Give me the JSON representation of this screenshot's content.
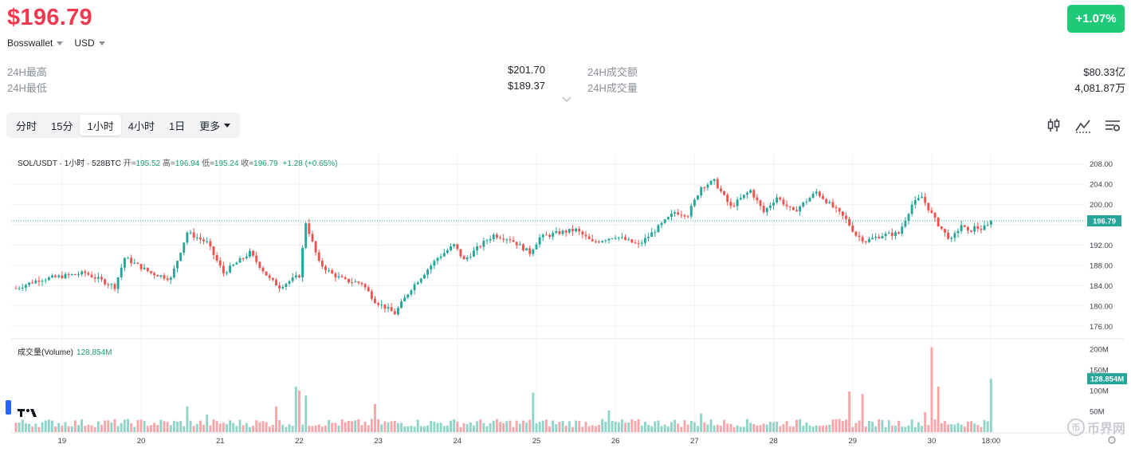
{
  "header": {
    "price": "$196.79",
    "wallet": "Bosswallet",
    "currency": "USD",
    "change": "+1.07%"
  },
  "stats": {
    "high_label": "24H最高",
    "high_value": "$201.70",
    "low_label": "24H最低",
    "low_value": "$189.37",
    "turnover_label": "24H成交额",
    "turnover_value": "$80.33亿",
    "volume_label": "24H成交量",
    "volume_value": "4,081.87万"
  },
  "tabs": [
    {
      "label": "分时",
      "active": false
    },
    {
      "label": "15分",
      "active": false
    },
    {
      "label": "1小时",
      "active": true
    },
    {
      "label": "4小时",
      "active": false
    },
    {
      "label": "1日",
      "active": false
    },
    {
      "label": "更多",
      "active": false
    }
  ],
  "legend": {
    "symbol": "SOL/USDT · 1小时 · 528BTC",
    "open_label": "开=",
    "open": "195.52",
    "high_label": "高=",
    "high": "196.94",
    "low_label": "低=",
    "low": "195.24",
    "close_label": "收=",
    "close": "196.79",
    "change": "+1.28 (+0.65%)"
  },
  "volume_legend": {
    "label": "成交量(Volume)",
    "value": "128.854M"
  },
  "watermark": "币界网",
  "colors": {
    "up": "#26a69a",
    "down": "#ef5350",
    "vol_up": "#8fd3c9",
    "vol_down": "#f6a5a8",
    "accent_green": "#1ec978",
    "price_red": "#f0384f"
  },
  "chart_data": [
    {
      "type": "candlestick",
      "title": "SOL/USDT · 1小时 · 528BTC",
      "ylim": [
        174,
        210
      ],
      "y_ticks": [
        176,
        180,
        184,
        188,
        192,
        196,
        200,
        204,
        208
      ],
      "y_tick_labels": [
        "176.00",
        "180.00",
        "184.00",
        "188.00",
        "192.00",
        "",
        "200.00",
        "204.00",
        "208.00"
      ],
      "x_tick_labels": [
        "19",
        "20",
        "21",
        "22",
        "23",
        "24",
        "25",
        "26",
        "27",
        "28",
        "29",
        "30",
        "18:00"
      ],
      "x_tick_hours": [
        14,
        38,
        62,
        86,
        110,
        134,
        158,
        182,
        206,
        230,
        254,
        278,
        296
      ],
      "total_hours": 316,
      "current_price": 196.79,
      "current_price_label": "196.79",
      "price_path_hours": [
        0,
        7,
        21,
        30,
        33,
        41,
        47,
        52,
        58,
        63,
        71,
        77,
        80,
        86,
        88,
        92,
        96,
        100,
        105,
        109,
        115,
        120,
        128,
        133,
        136,
        142,
        145,
        150,
        156,
        159,
        165,
        170,
        175,
        182,
        189,
        195,
        200,
        204,
        208,
        212,
        217,
        223,
        227,
        231,
        236,
        243,
        248,
        252,
        255,
        258,
        263,
        268,
        272,
        275,
        279,
        282,
        284,
        287,
        289,
        291,
        293,
        295,
        296
      ],
      "price_path_values": [
        183.5,
        185.2,
        186.5,
        183.8,
        189.5,
        186.5,
        185.4,
        194.5,
        192.5,
        186.5,
        190.5,
        185.3,
        183.8,
        186.0,
        196.5,
        188.5,
        186.3,
        185.0,
        184.5,
        181.0,
        178.5,
        183.5,
        189.5,
        192.0,
        189.0,
        192.5,
        194.0,
        193.2,
        190.5,
        193.5,
        194.5,
        195.0,
        192.5,
        193.8,
        192.0,
        195.5,
        198.5,
        198.0,
        203.5,
        204.6,
        199.5,
        202.8,
        198.5,
        201.5,
        198.5,
        202.5,
        199.5,
        197.0,
        194.0,
        192.8,
        194.0,
        194.3,
        200.0,
        201.5,
        197.0,
        194.3,
        193.0,
        196.0,
        194.5,
        195.5,
        195.2,
        195.8,
        196.79
      ]
    },
    {
      "type": "bar",
      "title": "成交量(Volume)",
      "unit": "M",
      "ylim": [
        0,
        210
      ],
      "y_ticks": [
        50,
        100,
        150,
        200
      ],
      "y_tick_labels": [
        "50M",
        "100M",
        "150M",
        "200M"
      ],
      "current_volume": 128.854,
      "current_volume_label": "128.854M",
      "base_volume_M": 22,
      "spikes_hours": [
        52,
        58,
        79,
        85,
        86,
        88,
        109,
        157,
        180,
        208,
        253,
        257,
        276,
        278,
        280,
        296
      ],
      "spikes_values_M": [
        62,
        42,
        62,
        110,
        100,
        88,
        68,
        95,
        52,
        45,
        98,
        92,
        48,
        205,
        110,
        128.854
      ]
    }
  ]
}
